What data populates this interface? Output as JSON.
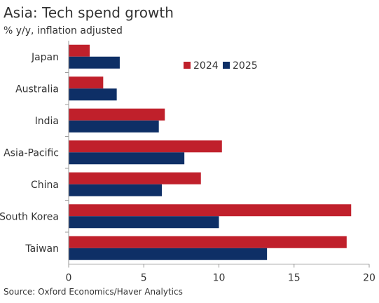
{
  "title": "Asia: Tech spend growth",
  "subtitle": "% y/y, inflation adjusted",
  "source": "Source: Oxford Economics/Haver Analytics",
  "colors": {
    "s2024": "#c0202b",
    "s2025": "#0e2f66",
    "axis": "#9a9a9a"
  },
  "chart_data": {
    "type": "bar",
    "orientation": "horizontal",
    "categories": [
      "Japan",
      "Australia",
      "India",
      "Asia-Pacific",
      "China",
      "South Korea",
      "Taiwan"
    ],
    "series": [
      {
        "name": "2024",
        "values": [
          1.4,
          2.3,
          6.4,
          10.2,
          8.8,
          18.8,
          18.5
        ]
      },
      {
        "name": "2025",
        "values": [
          3.4,
          3.2,
          6.0,
          7.7,
          6.2,
          10.0,
          13.2
        ]
      }
    ],
    "xlim": [
      0,
      20
    ],
    "xticks": [
      "0",
      "5",
      "10",
      "15",
      "20"
    ],
    "legend": "top-right",
    "grid": false
  }
}
